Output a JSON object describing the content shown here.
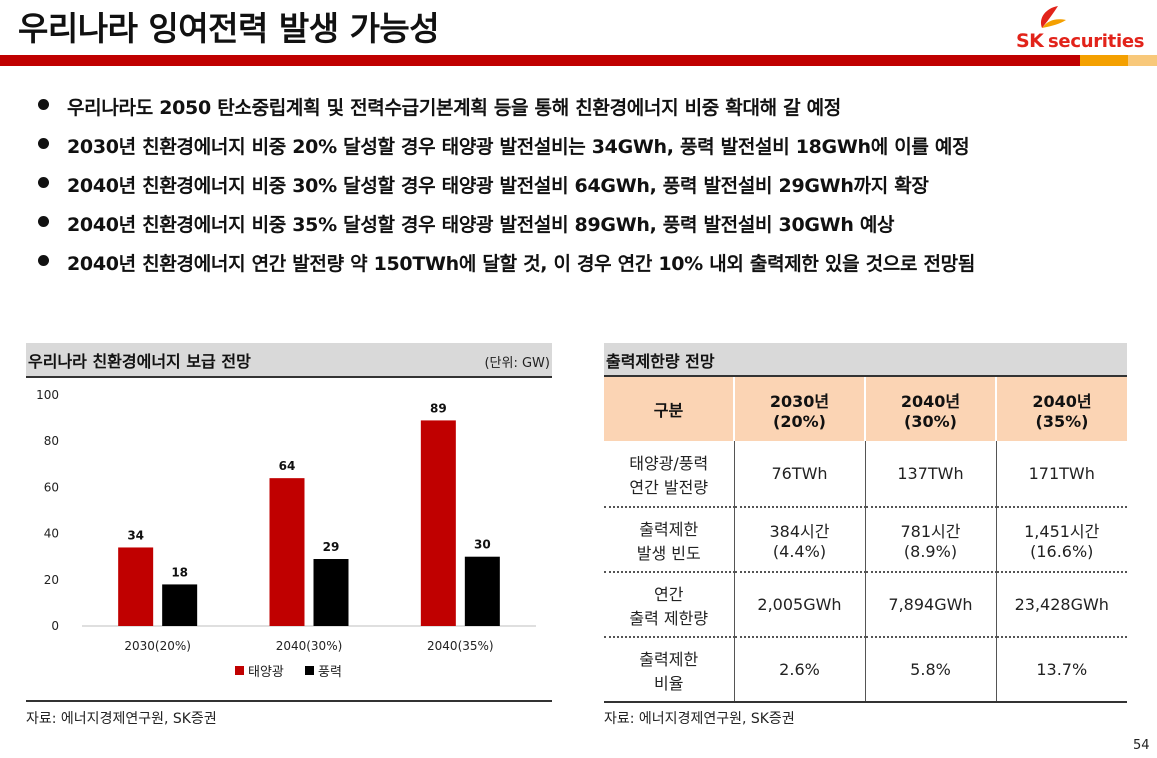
{
  "title": "우리나라 잉여전력 발생 가능성",
  "logo": {
    "sk": "SK",
    "secondary": "securities"
  },
  "bullets": [
    "우리나라도 2050 탄소중립계획 및 전력수급기본계획 등을 통해 친환경에너지 비중 확대해 갈 예정",
    "2030년 친환경에너지 비중 20% 달성할 경우 태양광 발전설비는 34GWh, 풍력 발전설비 18GWh에 이를 예정",
    "2040년 친환경에너지 비중 30% 달성할 경우 태양광 발전설비 64GWh, 풍력 발전설비 29GWh까지 확장",
    "2040년 친환경에너지 비중 35% 달성할 경우 태양광 발전설비 89GWh, 풍력 발전설비 30GWh 예상",
    "2040년 친환경에너지 연간 발전량 약 150TWh에 달할 것, 이 경우 연간 10% 내외 출력제한 있을 것으로 전망됨"
  ],
  "left_panel": {
    "heading": "우리나라 친환경에너지 보급 전망",
    "unit": "(단위: GW)",
    "source": "자료: 에너지경제연구원, SK증권"
  },
  "chart_data": {
    "type": "bar",
    "categories": [
      "2030(20%)",
      "2040(30%)",
      "2040(35%)"
    ],
    "series": [
      {
        "name": "태양광",
        "values": [
          34,
          64,
          89
        ],
        "color": "#c00000"
      },
      {
        "name": "풍력",
        "values": [
          18,
          29,
          30
        ],
        "color": "#000000"
      }
    ],
    "ylim": [
      0,
      100
    ],
    "yticks": [
      0,
      20,
      40,
      60,
      80,
      100
    ],
    "title": "",
    "xlabel": "",
    "ylabel": "",
    "grid": false,
    "legend_position": "bottom",
    "data_labels": true
  },
  "right_panel": {
    "heading": "출력제한량 전망",
    "source": "자료: 에너지경제연구원, SK증권",
    "header": {
      "col0": "구분",
      "col1": [
        "2030년",
        "(20%)"
      ],
      "col2": [
        "2040년",
        "(30%)"
      ],
      "col3": [
        "2040년",
        "(35%)"
      ]
    },
    "rows": [
      {
        "label": [
          "태양광/풍력",
          "연간 발전량"
        ],
        "cells": [
          [
            "76TWh"
          ],
          [
            "137TWh"
          ],
          [
            "171TWh"
          ]
        ]
      },
      {
        "label": [
          "출력제한",
          "발생 빈도"
        ],
        "cells": [
          [
            "384시간",
            "(4.4%)"
          ],
          [
            "781시간",
            "(8.9%)"
          ],
          [
            "1,451시간",
            "(16.6%)"
          ]
        ]
      },
      {
        "label": [
          "연간",
          "출력 제한량"
        ],
        "cells": [
          [
            "2,005GWh"
          ],
          [
            "7,894GWh"
          ],
          [
            "23,428GWh"
          ]
        ]
      },
      {
        "label": [
          "출력제한",
          "비율"
        ],
        "cells": [
          [
            "2.6%"
          ],
          [
            "5.8%"
          ],
          [
            "13.7%"
          ]
        ]
      }
    ]
  },
  "page_number": "54"
}
